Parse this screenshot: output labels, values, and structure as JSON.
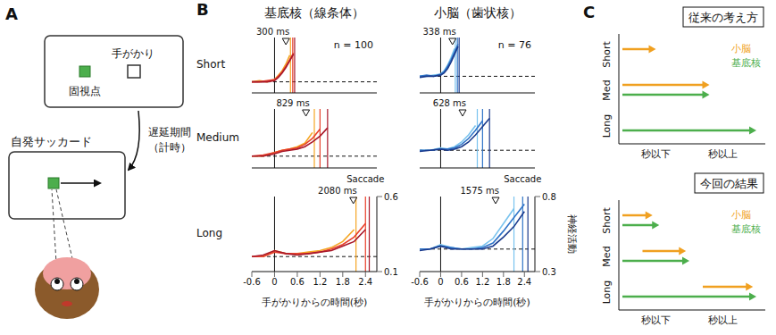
{
  "panel_a": {
    "label": "A",
    "cue": "手がかり",
    "fixation": "固視点",
    "saccade_screen": "自発サッカード",
    "delay": [
      "遅延期間",
      "（計時）"
    ]
  },
  "panel_b": {
    "label": "B",
    "columns": [
      "基底核（線条体）",
      "小脳（歯状核）"
    ],
    "rows": [
      "Short",
      "Medium",
      "Long"
    ]
  },
  "chart_data": [
    {
      "type": "line",
      "x": [
        -0.6,
        -0.4,
        -0.2,
        0,
        0.1,
        0.2,
        0.3,
        0.4,
        0.5
      ],
      "xlim": [
        -0.6,
        2.7
      ],
      "ylim": [
        0.1,
        0.6
      ],
      "tick_labels": false,
      "cue": 0,
      "baseline": 0.2,
      "onset": {
        "value": 0.3,
        "label": "300 ms"
      },
      "annotation": "n = 100",
      "series": [
        {
          "color": "#f5a623",
          "values": [
            0.2,
            0.21,
            0.2,
            0.22,
            0.26,
            0.3,
            0.36,
            0.44,
            null
          ],
          "saccade": 0.42
        },
        {
          "color": "#e8402a",
          "values": [
            0.2,
            0.2,
            0.21,
            0.22,
            0.25,
            0.29,
            0.34,
            0.4,
            0.46
          ],
          "saccade": 0.48
        },
        {
          "color": "#a8182a",
          "values": [
            0.2,
            0.2,
            0.2,
            0.21,
            0.24,
            0.28,
            0.33,
            0.39,
            0.45
          ],
          "saccade": 0.53
        }
      ]
    },
    {
      "type": "line",
      "x": [
        -0.6,
        -0.4,
        -0.2,
        0,
        0.1,
        0.2,
        0.3,
        0.4,
        0.5
      ],
      "xlim": [
        -0.6,
        2.7
      ],
      "ylim": [
        0.3,
        0.8
      ],
      "tick_labels": false,
      "cue": 0,
      "baseline": 0.45,
      "onset": {
        "value": 0.338,
        "label": "338 ms"
      },
      "annotation": "n = 76",
      "series": [
        {
          "color": "#79c3ee",
          "values": [
            0.45,
            0.45,
            0.46,
            0.47,
            0.5,
            0.55,
            0.62,
            0.7,
            null
          ],
          "saccade": 0.42
        },
        {
          "color": "#2f74c8",
          "values": [
            0.45,
            0.46,
            0.45,
            0.47,
            0.49,
            0.54,
            0.6,
            0.67,
            0.74
          ],
          "saccade": 0.48
        },
        {
          "color": "#1a3a8c",
          "values": [
            0.44,
            0.45,
            0.45,
            0.46,
            0.48,
            0.52,
            0.58,
            0.65,
            0.72
          ],
          "saccade": 0.53
        }
      ]
    },
    {
      "type": "line",
      "x": [
        -0.6,
        -0.3,
        0,
        0.2,
        0.4,
        0.6,
        0.8,
        1.0,
        1.2,
        1.4
      ],
      "xlim": [
        -0.6,
        2.7
      ],
      "ylim": [
        0.1,
        0.6
      ],
      "tick_labels": false,
      "cue": 0,
      "baseline": 0.2,
      "onset": {
        "value": 0.829,
        "label": "829 ms"
      },
      "series": [
        {
          "color": "#f5a623",
          "values": [
            0.2,
            0.2,
            0.23,
            0.25,
            0.26,
            0.28,
            0.31,
            0.4,
            null,
            null
          ],
          "saccade": 1.05
        },
        {
          "color": "#e8402a",
          "values": [
            0.2,
            0.21,
            0.23,
            0.25,
            0.26,
            0.27,
            0.3,
            0.35,
            0.43,
            null
          ],
          "saccade": 1.2
        },
        {
          "color": "#a8182a",
          "values": [
            0.2,
            0.2,
            0.22,
            0.24,
            0.25,
            0.26,
            0.28,
            0.32,
            0.37,
            0.44
          ],
          "saccade": 1.4
        }
      ]
    },
    {
      "type": "line",
      "x": [
        -0.6,
        -0.3,
        0,
        0.2,
        0.4,
        0.6,
        0.8,
        1.0,
        1.2,
        1.4
      ],
      "xlim": [
        -0.6,
        2.7
      ],
      "ylim": [
        0.3,
        0.8
      ],
      "tick_labels": false,
      "cue": 0,
      "baseline": 0.45,
      "onset": {
        "value": 0.628,
        "label": "628 ms"
      },
      "series": [
        {
          "color": "#79c3ee",
          "values": [
            0.45,
            0.45,
            0.47,
            0.46,
            0.48,
            0.52,
            0.58,
            0.66,
            null,
            null
          ],
          "saccade": 1.05
        },
        {
          "color": "#2f74c8",
          "values": [
            0.45,
            0.45,
            0.46,
            0.46,
            0.47,
            0.5,
            0.55,
            0.62,
            0.7,
            null
          ],
          "saccade": 1.2
        },
        {
          "color": "#1a3a8c",
          "values": [
            0.44,
            0.45,
            0.46,
            0.45,
            0.46,
            0.48,
            0.52,
            0.58,
            0.65,
            0.72
          ],
          "saccade": 1.4
        }
      ]
    },
    {
      "type": "line",
      "x": [
        -0.6,
        -0.3,
        0,
        0.3,
        0.6,
        0.9,
        1.2,
        1.5,
        1.8,
        2.1,
        2.4
      ],
      "xlim": [
        -0.6,
        2.7
      ],
      "ylim": [
        0.1,
        0.6
      ],
      "xticks": [
        -0.6,
        0,
        0.6,
        1.2,
        1.8,
        2.4
      ],
      "yticks": [
        0.1,
        0.6
      ],
      "xlabel": "手がかりからの時間(秒)",
      "saccade_label": "Saccade",
      "cue": 0,
      "baseline": 0.2,
      "onset": {
        "value": 2.08,
        "label": "2080 ms"
      },
      "series": [
        {
          "color": "#f5a623",
          "values": [
            0.2,
            0.2,
            0.24,
            0.22,
            0.22,
            0.23,
            0.24,
            0.26,
            0.3,
            0.38,
            null
          ],
          "saccade": 2.15
        },
        {
          "color": "#e8402a",
          "values": [
            0.2,
            0.2,
            0.23,
            0.22,
            0.22,
            0.22,
            0.23,
            0.25,
            0.28,
            0.33,
            0.42
          ],
          "saccade": 2.4
        },
        {
          "color": "#a8182a",
          "values": [
            0.2,
            0.21,
            0.24,
            0.22,
            0.21,
            0.22,
            0.23,
            0.24,
            0.27,
            0.3,
            0.38
          ],
          "saccade": 2.5
        }
      ]
    },
    {
      "type": "line",
      "x": [
        -0.6,
        -0.3,
        0,
        0.3,
        0.6,
        0.9,
        1.2,
        1.5,
        1.8,
        2.1,
        2.4
      ],
      "xlim": [
        -0.6,
        2.7
      ],
      "ylim": [
        0.3,
        0.8
      ],
      "xticks": [
        -0.6,
        0,
        0.6,
        1.2,
        1.8,
        2.4
      ],
      "yticks": [
        0.3,
        0.8
      ],
      "xlabel": "手がかりからの時間(秒)",
      "ylabel": "神経活動",
      "saccade_label": "Saccade",
      "cue": 0,
      "baseline": 0.45,
      "onset": {
        "value": 1.575,
        "label": "1575 ms"
      },
      "series": [
        {
          "color": "#79c3ee",
          "values": [
            0.45,
            0.45,
            0.48,
            0.46,
            0.45,
            0.46,
            0.47,
            0.52,
            0.62,
            0.72,
            null
          ],
          "saccade": 2.1
        },
        {
          "color": "#2f74c8",
          "values": [
            0.45,
            0.45,
            0.47,
            0.46,
            0.45,
            0.45,
            0.46,
            0.49,
            0.57,
            0.66,
            0.75
          ],
          "saccade": 2.35
        },
        {
          "color": "#1a3a8c",
          "values": [
            0.44,
            0.45,
            0.47,
            0.45,
            0.45,
            0.45,
            0.45,
            0.47,
            0.53,
            0.6,
            0.7
          ],
          "saccade": 2.5
        }
      ]
    }
  ],
  "panel_c": {
    "label": "C",
    "rows": [
      "Short",
      "Med",
      "Long"
    ],
    "xlabels": [
      "秒以下",
      "秒以上"
    ],
    "xlim": [
      0,
      2
    ],
    "series": [
      {
        "name": "小脳",
        "color": "#f0a020"
      },
      {
        "name": "基底核",
        "color": "#4cae4c"
      }
    ],
    "diagrams": [
      {
        "title": "従来の考え方",
        "arrows": [
          {
            "row": 0,
            "series": 0,
            "x": [
              0,
              0.5
            ]
          },
          {
            "row": 1,
            "series": 0,
            "x": [
              0,
              1.3
            ]
          },
          {
            "row": 1,
            "series": 1,
            "x": [
              0,
              1.3
            ]
          },
          {
            "row": 2,
            "series": 1,
            "x": [
              0,
              2
            ]
          }
        ]
      },
      {
        "title": "今回の結果",
        "arrows": [
          {
            "row": 0,
            "series": 0,
            "x": [
              0,
              0.45
            ]
          },
          {
            "row": 0,
            "series": 1,
            "x": [
              0,
              0.55
            ]
          },
          {
            "row": 1,
            "series": 0,
            "x": [
              0.3,
              0.95
            ]
          },
          {
            "row": 1,
            "series": 1,
            "x": [
              0,
              1.0
            ]
          },
          {
            "row": 2,
            "series": 0,
            "x": [
              1.2,
              1.95
            ]
          },
          {
            "row": 2,
            "series": 1,
            "x": [
              0,
              2
            ]
          }
        ]
      }
    ]
  }
}
